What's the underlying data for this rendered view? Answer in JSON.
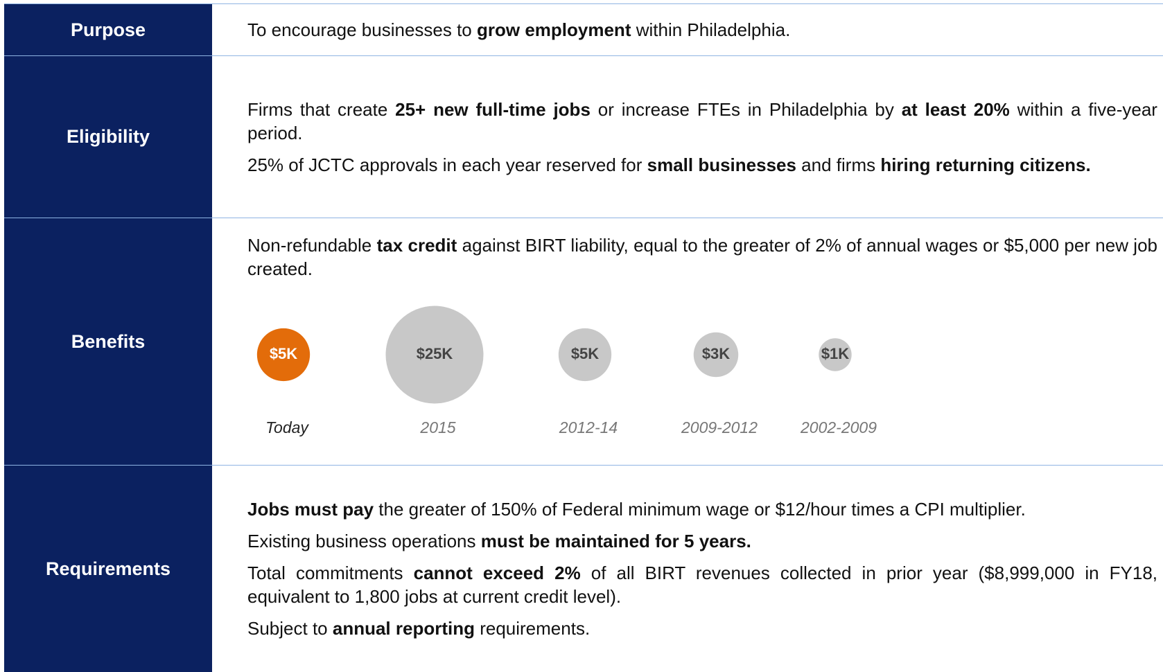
{
  "rows": [
    {
      "label": "Purpose",
      "paragraphs": [
        [
          {
            "text": "To encourage businesses to ",
            "bold": false
          },
          {
            "text": "grow employment",
            "bold": true
          },
          {
            "text": " within Philadelphia.",
            "bold": false
          }
        ]
      ]
    },
    {
      "label": "Eligibility",
      "paragraphs": [
        [
          {
            "text": "Firms that create ",
            "bold": false
          },
          {
            "text": "25+ new full-time jobs",
            "bold": true
          },
          {
            "text": " or increase FTEs in Philadelphia by ",
            "bold": false
          },
          {
            "text": "at least 20%",
            "bold": true
          },
          {
            "text": " within a five-year period.",
            "bold": false
          }
        ],
        [
          {
            "text": "25% of JCTC approvals in each year reserved for ",
            "bold": false
          },
          {
            "text": "small businesses",
            "bold": true
          },
          {
            "text": " and firms ",
            "bold": false
          },
          {
            "text": "hiring returning citizens.",
            "bold": true
          }
        ]
      ]
    },
    {
      "label": "Benefits",
      "paragraphs": [
        [
          {
            "text": "Non-refundable ",
            "bold": false
          },
          {
            "text": "tax credit",
            "bold": true
          },
          {
            "text": " against BIRT liability, equal to the greater of 2% of annual wages or $5,000 per new job created.",
            "bold": false
          }
        ]
      ]
    },
    {
      "label": "Requirements",
      "paragraphs": [
        [
          {
            "text": "Jobs must pay",
            "bold": true
          },
          {
            "text": " the greater of 150% of Federal minimum wage or $12/hour times a CPI multiplier.",
            "bold": false
          }
        ],
        [
          {
            "text": "Existing business operations ",
            "bold": false
          },
          {
            "text": "must be maintained for 5 years.",
            "bold": true
          }
        ],
        [
          {
            "text": "Total commitments ",
            "bold": false
          },
          {
            "text": "cannot exceed 2%",
            "bold": true
          },
          {
            "text": " of all BIRT revenues collected in prior year ($8,999,000 in FY18, equivalent to 1,800 jobs at current credit level).",
            "bold": false
          }
        ],
        [
          {
            "text": "Subject to ",
            "bold": false
          },
          {
            "text": "annual reporting",
            "bold": true
          },
          {
            "text": " requirements.",
            "bold": false
          }
        ]
      ]
    }
  ],
  "chart_data": {
    "type": "bubble",
    "categories": [
      "Today",
      "2015",
      "2012-14",
      "2009-2012",
      "2002-2009"
    ],
    "values": [
      5000,
      25000,
      5000,
      3000,
      1000
    ],
    "value_labels": [
      "$5K",
      "$25K",
      "$5K",
      "$3K",
      "$1K"
    ],
    "colors": [
      "#e36c0a",
      "#c8c8c8",
      "#c8c8c8",
      "#c8c8c8",
      "#c8c8c8"
    ]
  }
}
